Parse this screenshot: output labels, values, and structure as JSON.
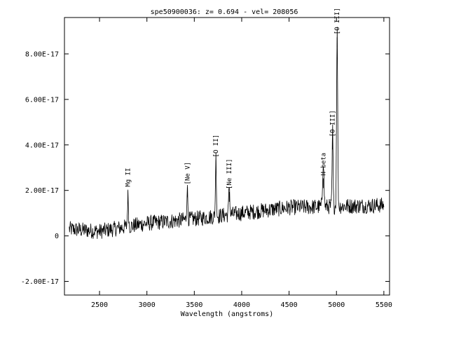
{
  "chart_data": {
    "type": "line",
    "title": "spe50900036: z= 0.694  -  vel= 208056",
    "xlabel": "Wavelength (angstroms)",
    "ylabel": "",
    "xlim": [
      2130,
      5560
    ],
    "ylim": [
      -2.6e-17,
      9.6e-17
    ],
    "x_ticks": [
      2500,
      3000,
      3500,
      4000,
      4500,
      5000,
      5500
    ],
    "x_tick_labels": [
      "2500",
      "3000",
      "3500",
      "4000",
      "4500",
      "5000",
      "5500"
    ],
    "y_ticks": [
      -2e-17,
      0,
      2e-17,
      4e-17,
      6e-17,
      8e-17
    ],
    "y_tick_labels": [
      "-2.00E-17",
      "0",
      "2.00E-17",
      "4.00E-17",
      "6.00E-17",
      "8.00E-17"
    ],
    "grid": false,
    "series": [
      {
        "sampling": {
          "start": 2180,
          "end": 5500,
          "step": 4
        },
        "baseline": [
          [
            2180,
            3e-18
          ],
          [
            2500,
            2e-18
          ],
          [
            3000,
            5.5e-18
          ],
          [
            3500,
            7.5e-18
          ],
          [
            4000,
            1e-17
          ],
          [
            4500,
            1.25e-17
          ],
          [
            5000,
            1.3e-17
          ],
          [
            5500,
            1.35e-17
          ]
        ],
        "noise_amplitude": 3.5e-18,
        "features": [
          {
            "x": 2800,
            "peak": 1.3e-17,
            "width": 8
          },
          {
            "x": 3426,
            "peak": 1.35e-17,
            "width": 8
          },
          {
            "x": 3728,
            "peak": 2.6e-17,
            "width": 7
          },
          {
            "x": 3869,
            "peak": 1.3e-17,
            "width": 8
          },
          {
            "x": 4861,
            "peak": 2.1e-17,
            "width": 10
          },
          {
            "x": 4959,
            "peak": 3.4e-17,
            "width": 7
          },
          {
            "x": 5007,
            "peak": 7.8e-17,
            "width": 8
          }
        ]
      }
    ],
    "annotations": [
      {
        "label": "Mg II",
        "x": 2800,
        "y": 1.6e-17
      },
      {
        "label": "[Ne V]",
        "x": 3426,
        "y": 1.7e-17
      },
      {
        "label": "[O II]",
        "x": 3728,
        "y": 2.9e-17
      },
      {
        "label": "[Ne III]",
        "x": 3869,
        "y": 1.5e-17
      },
      {
        "label": "H beta",
        "x": 4861,
        "y": 2.1e-17
      },
      {
        "label": "[O III]",
        "x": 4959,
        "y": 3.8e-17
      },
      {
        "label": "[O III]",
        "x": 5007,
        "y": 8.3e-17
      }
    ]
  }
}
